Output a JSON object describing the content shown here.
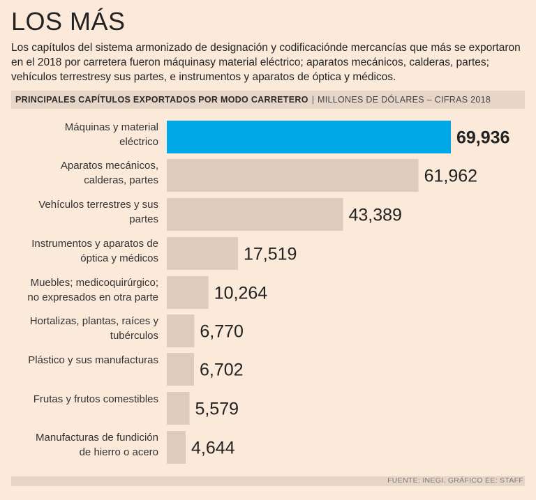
{
  "title": "LOS MÁS",
  "subtitle": "Los capítulos del sistema armonizado de designación y codificaciónde mercancías que más se exportaron en el 2018 por carretera fueron máquinasy material eléctrico; aparatos mecánicos, calderas, partes; vehículos terrestresy sus partes, e instrumentos y aparatos de óptica y médicos.",
  "header": {
    "bold": "PRINCIPALES CAPÍTULOS EXPORTADOS POR MODO CARRETERO",
    "separator": "|",
    "light": "MILLONES DE DÓLARES – CIFRAS 2018"
  },
  "source": "FUENTE: INEGI. GRÁFICO EE: STAFF",
  "colors": {
    "highlight": "#00a8e8",
    "bar": "#dfcbbb",
    "background": "#fbe9d9"
  },
  "chart_data": {
    "type": "bar",
    "orientation": "horizontal",
    "categories": [
      [
        "Máquinas y material",
        "eléctrico"
      ],
      [
        "Aparatos mecánicos,",
        "calderas, partes"
      ],
      [
        "Vehículos terrestres y sus",
        "partes"
      ],
      [
        "Instrumentos y aparatos de",
        "óptica y médicos"
      ],
      [
        "Muebles; medicoquirúrgico;",
        "no expresados en otra parte"
      ],
      [
        "Hortalizas, plantas, raíces y",
        "tubérculos"
      ],
      [
        "Plástico y sus manufacturas"
      ],
      [
        "Frutas y frutos comestibles"
      ],
      [
        "Manufacturas de fundición",
        "de hierro o acero"
      ]
    ],
    "values": [
      69936,
      61962,
      43389,
      17519,
      10264,
      6770,
      6702,
      5579,
      4644
    ],
    "value_labels": [
      "69,936",
      "61,962",
      "43,389",
      "17,519",
      "10,264",
      "6,770",
      "6,702",
      "5,579",
      "4,644"
    ],
    "highlight_index": 0,
    "grid": false
  }
}
